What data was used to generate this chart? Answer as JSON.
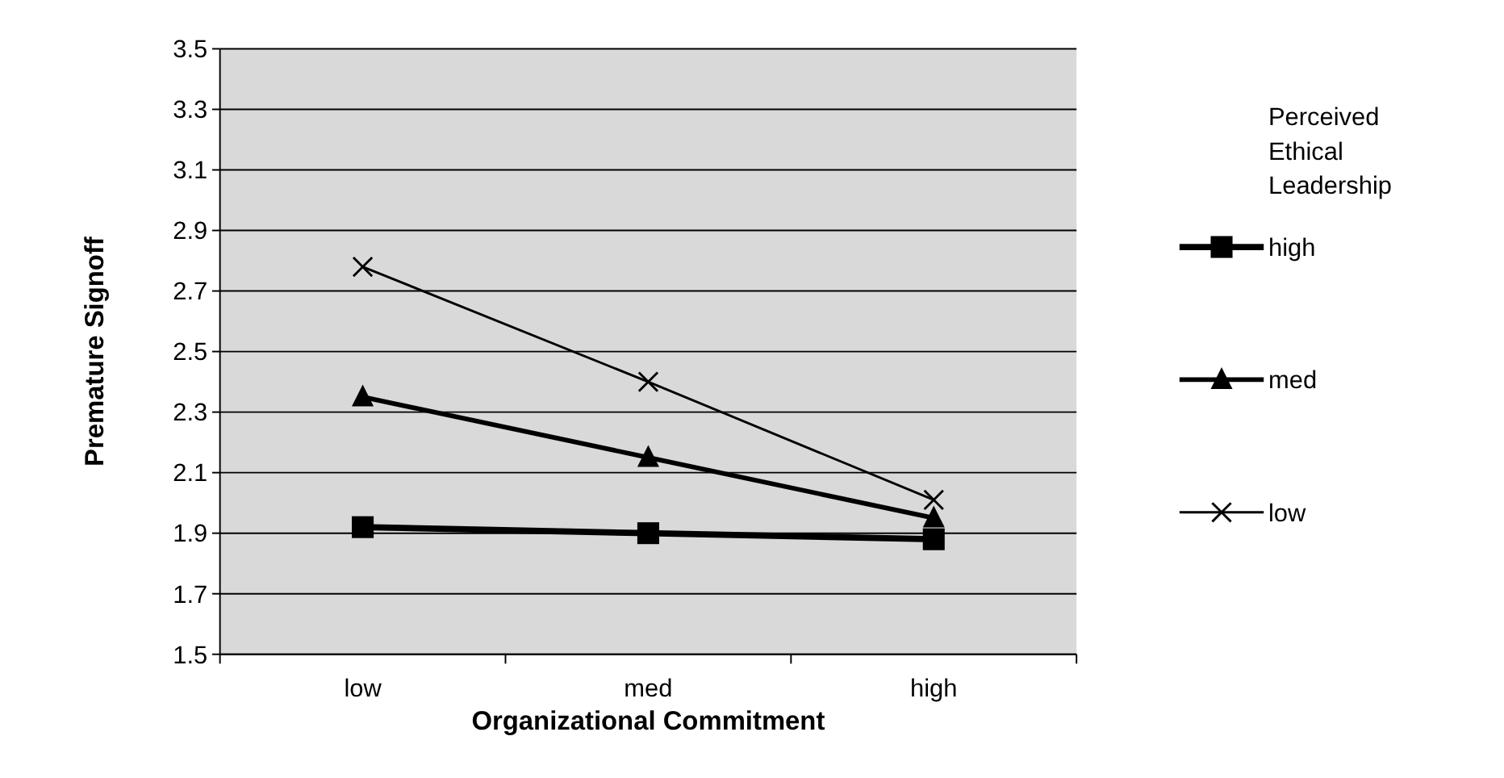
{
  "chart_data": {
    "type": "line",
    "xlabel": "Organizational Commitment",
    "ylabel": "Premature Signoff",
    "legend_title": "Perceived Ethical Leadership",
    "categories": [
      "low",
      "med",
      "high"
    ],
    "series": [
      {
        "name": "high",
        "color": "#000000",
        "marker": "square",
        "values": [
          1.92,
          1.9,
          1.88
        ]
      },
      {
        "name": "med",
        "color": "#000000",
        "marker": "triangle",
        "values": [
          2.35,
          2.15,
          1.95
        ]
      },
      {
        "name": "low",
        "color": "#000000",
        "marker": "cross",
        "values": [
          2.78,
          2.4,
          2.01
        ]
      }
    ],
    "ylim": [
      1.5,
      3.5
    ],
    "yticks": [
      1.5,
      1.7,
      1.9,
      2.1,
      2.3,
      2.5,
      2.7,
      2.9,
      3.1,
      3.3,
      3.5
    ],
    "grid": "y",
    "legend": "right"
  }
}
